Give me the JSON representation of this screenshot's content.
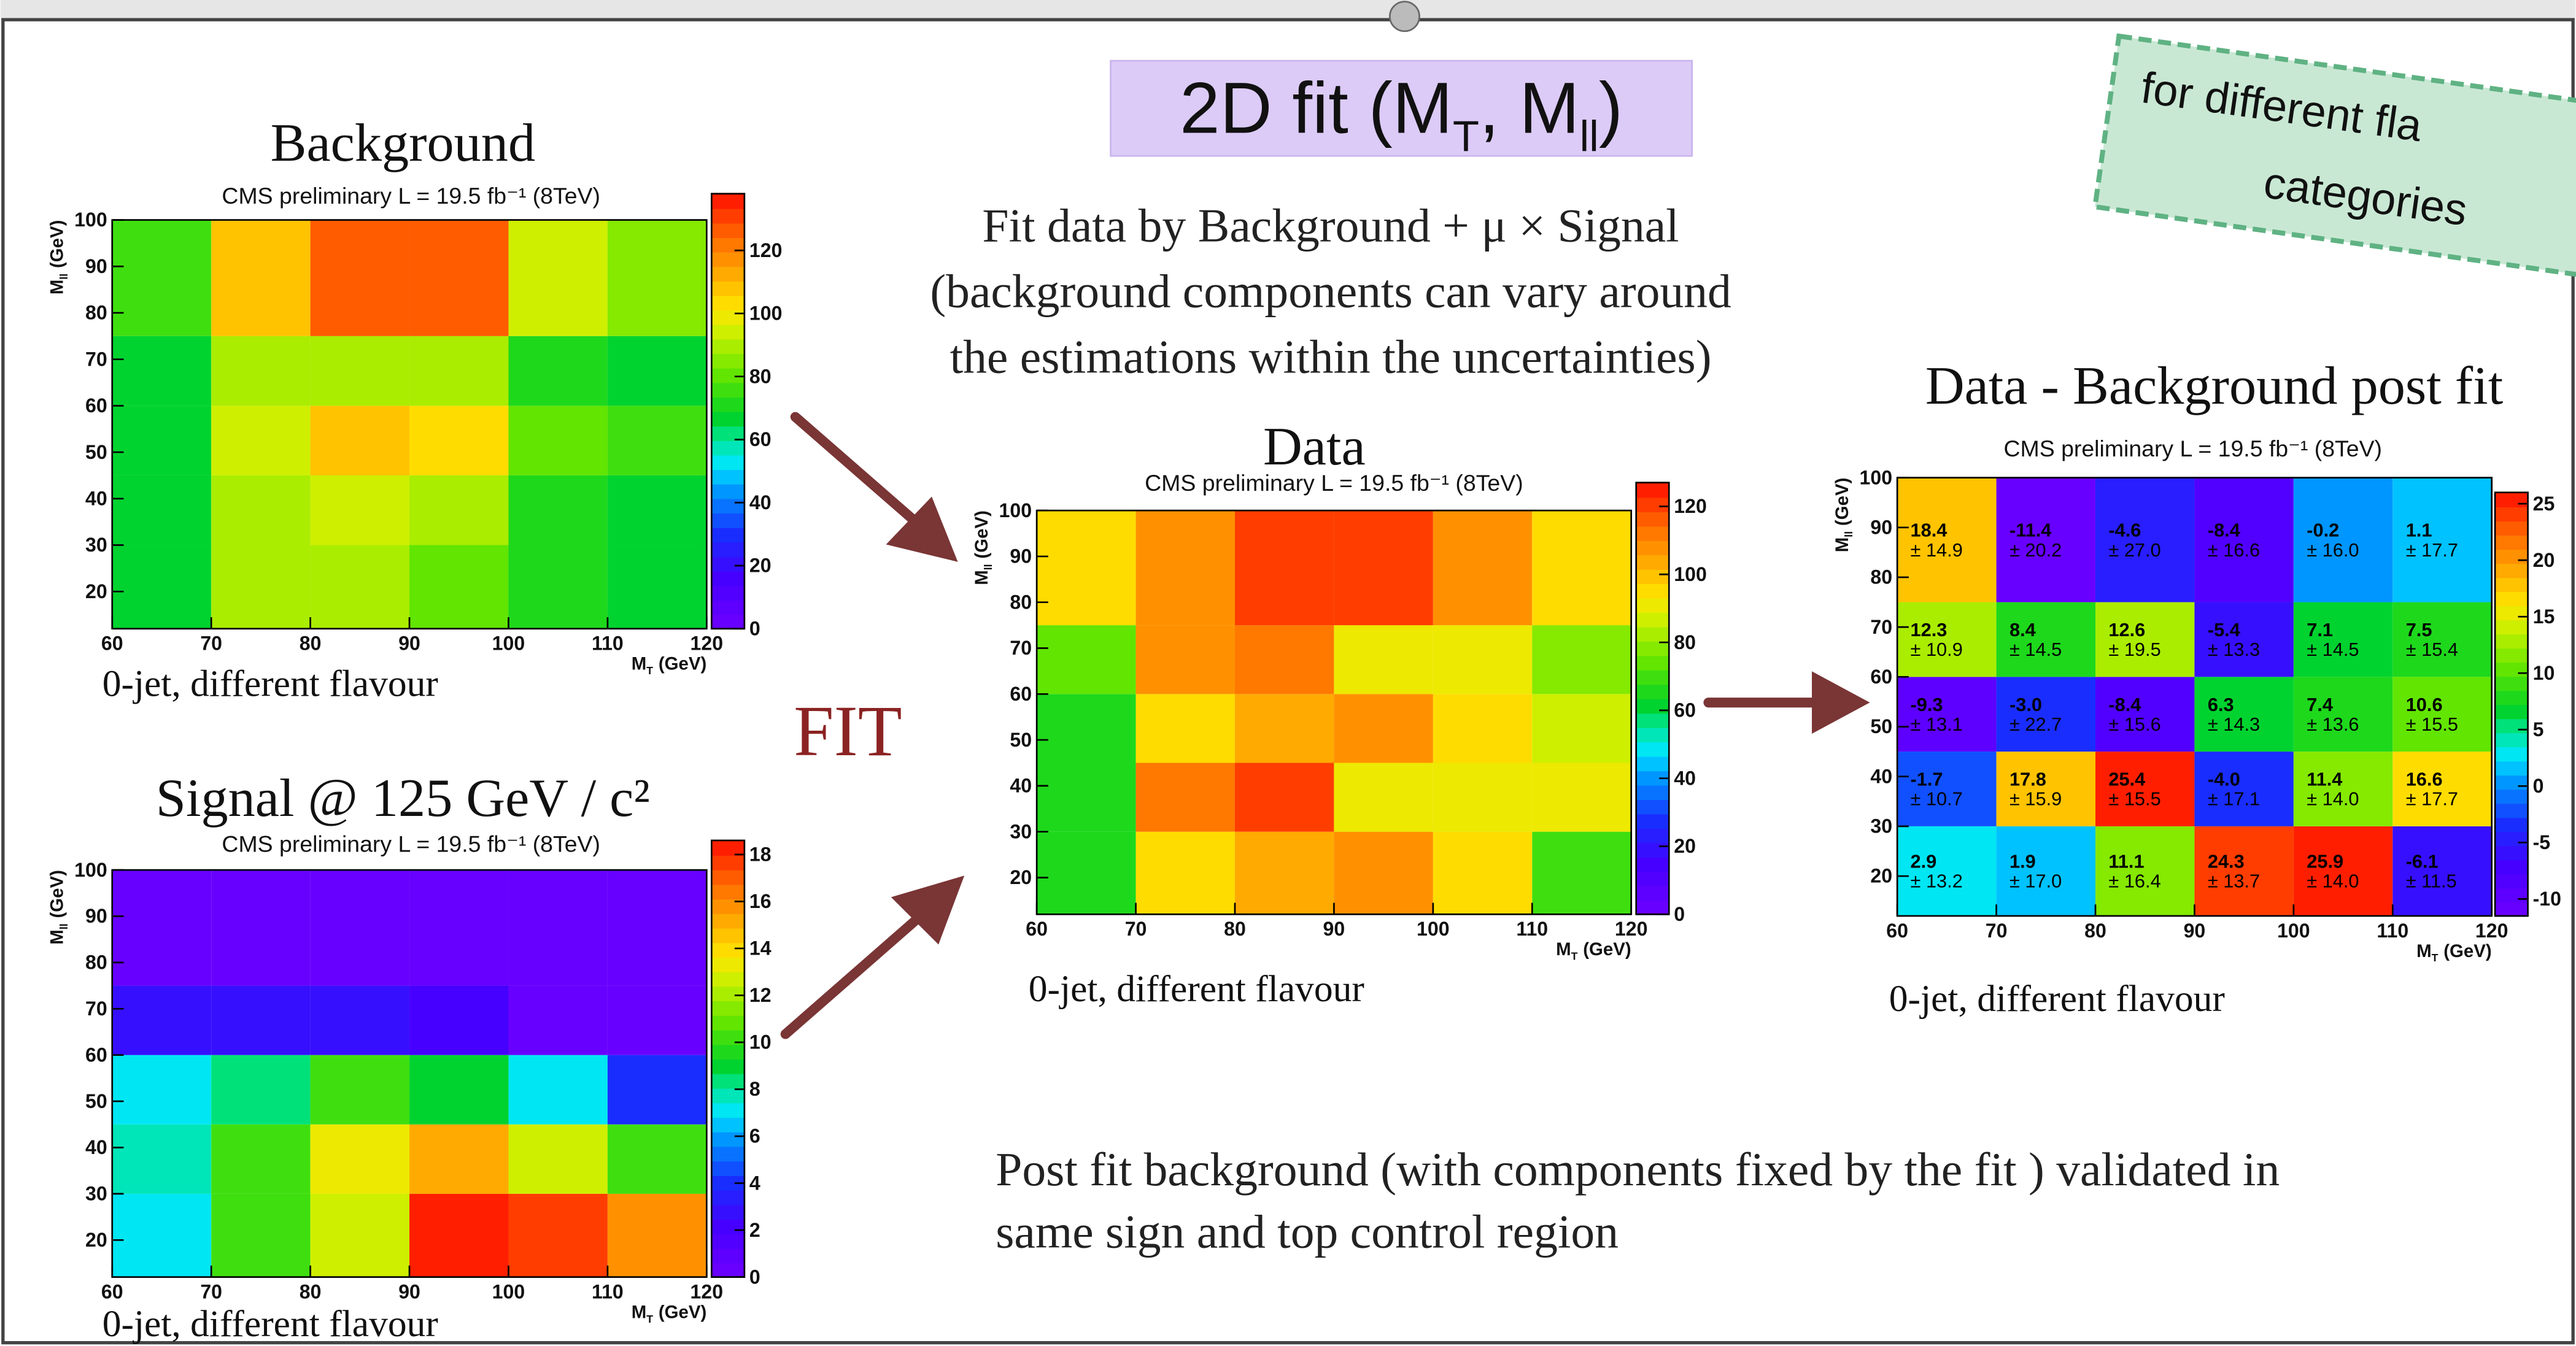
{
  "slide_title": [
    "2D fit (M",
    "T",
    ", M",
    "ll",
    ")"
  ],
  "fit_text": [
    "Fit data by  Background + μ × Signal",
    "(background components can vary around",
    "the estimations within the uncertainties)"
  ],
  "fit_label": "FIT",
  "conclusion": [
    "Post fit background (with components fixed by the fit ) validated in",
    "same sign and top control region"
  ],
  "note": [
    "for different fla",
    "categories"
  ],
  "chart_data": [
    {
      "type": "heatmap",
      "title": "Background",
      "subtitle": "CMS preliminary L = 19.5 fb⁻¹ (8TeV)",
      "caption": "0-jet, different flavour",
      "xlabel": [
        "M",
        "T",
        "(GeV)"
      ],
      "ylabel": [
        "M",
        "ll",
        "(GeV)"
      ],
      "xbins": [
        60,
        70,
        80,
        90,
        100,
        110,
        120
      ],
      "ybins": [
        12,
        30,
        45,
        60,
        75,
        100
      ],
      "xlim": [
        60,
        120
      ],
      "ylim": [
        12,
        100
      ],
      "xticks": [
        60,
        70,
        80,
        90,
        100,
        110,
        120
      ],
      "yticks": [
        20,
        30,
        40,
        50,
        60,
        70,
        80,
        90,
        100
      ],
      "zlim": [
        0,
        138
      ],
      "zticks": [
        0,
        20,
        40,
        60,
        80,
        100,
        120
      ],
      "z": [
        [
          65,
          88,
          88,
          80,
          70,
          68
        ],
        [
          65,
          88,
          95,
          90,
          70,
          68
        ],
        [
          65,
          95,
          110,
          103,
          80,
          78
        ],
        [
          65,
          90,
          90,
          90,
          70,
          65
        ],
        [
          75,
          110,
          128,
          128,
          95,
          85
        ]
      ]
    },
    {
      "type": "heatmap",
      "title": "Signal @ 125 GeV / c²",
      "subtitle": "CMS preliminary L = 19.5 fb⁻¹ (8TeV)",
      "caption": "0-jet, different flavour",
      "xlabel": [
        "M",
        "T",
        "(GeV)"
      ],
      "ylabel": [
        "M",
        "ll",
        "(GeV)"
      ],
      "xbins": [
        60,
        70,
        80,
        90,
        100,
        110,
        120
      ],
      "ybins": [
        12,
        30,
        45,
        60,
        75,
        100
      ],
      "xlim": [
        60,
        120
      ],
      "ylim": [
        12,
        100
      ],
      "xticks": [
        60,
        70,
        80,
        90,
        100,
        110,
        120
      ],
      "yticks": [
        20,
        30,
        40,
        50,
        60,
        70,
        80,
        90,
        100
      ],
      "zlim": [
        0,
        18.6
      ],
      "zticks": [
        0,
        2,
        4,
        6,
        8,
        10,
        12,
        14,
        16,
        18
      ],
      "z": [
        [
          7,
          10,
          12.5,
          18.5,
          17.5,
          16
        ],
        [
          8,
          10,
          13.5,
          15.5,
          13,
          10
        ],
        [
          7,
          8.5,
          10,
          9,
          7,
          4
        ],
        [
          3,
          3,
          3,
          2,
          0.5,
          0.5
        ],
        [
          0.5,
          0.5,
          0.5,
          0.5,
          0.5,
          0.5
        ]
      ]
    },
    {
      "type": "heatmap",
      "title": "Data",
      "subtitle": "CMS preliminary L = 19.5 fb⁻¹ (8TeV)",
      "caption": "0-jet, different flavour",
      "xlabel": [
        "M",
        "T",
        "(GeV)"
      ],
      "ylabel": [
        "M",
        "ll",
        "(GeV)"
      ],
      "xbins": [
        60,
        70,
        80,
        90,
        100,
        110,
        120
      ],
      "ybins": [
        12,
        30,
        45,
        60,
        75,
        100
      ],
      "xlim": [
        60,
        120
      ],
      "ylim": [
        12,
        100
      ],
      "xticks": [
        60,
        70,
        80,
        90,
        100,
        110,
        120
      ],
      "yticks": [
        20,
        30,
        40,
        50,
        60,
        70,
        80,
        90,
        100
      ],
      "zlim": [
        0,
        127
      ],
      "zticks": [
        0,
        20,
        40,
        60,
        80,
        100,
        120
      ],
      "z": [
        [
          65,
          95,
          105,
          110,
          95,
          70
        ],
        [
          65,
          112,
          120,
          90,
          90,
          90
        ],
        [
          65,
          95,
          105,
          110,
          95,
          88
        ],
        [
          75,
          108,
          112,
          90,
          90,
          78
        ],
        [
          95,
          110,
          122,
          120,
          108,
          95
        ]
      ]
    },
    {
      "type": "heatmap",
      "title": "Data - Background post fit",
      "subtitle": "CMS preliminary L = 19.5 fb⁻¹ (8TeV)",
      "caption": "0-jet, different flavour",
      "xlabel": [
        "M",
        "T",
        "(GeV)"
      ],
      "ylabel": [
        "M",
        "ll",
        "(GeV)"
      ],
      "xbins": [
        60,
        70,
        80,
        90,
        100,
        110,
        120
      ],
      "ybins": [
        12,
        30,
        45,
        60,
        75,
        100
      ],
      "xlim": [
        60,
        120
      ],
      "ylim": [
        12,
        100
      ],
      "xticks": [
        60,
        70,
        80,
        90,
        100,
        110,
        120
      ],
      "yticks": [
        20,
        30,
        40,
        50,
        60,
        70,
        80,
        90,
        100
      ],
      "zlim": [
        -11.5,
        26
      ],
      "zticks": [
        -10,
        -5,
        0,
        5,
        10,
        15,
        20,
        25
      ],
      "z": [
        [
          2.9,
          1.9,
          11.1,
          24.3,
          25.9,
          -6.1
        ],
        [
          -1.7,
          17.8,
          25.4,
          -4.0,
          11.4,
          16.6
        ],
        [
          -9.3,
          -3.0,
          -8.4,
          6.3,
          7.4,
          10.6
        ],
        [
          12.3,
          8.4,
          12.6,
          -5.4,
          7.1,
          7.5
        ],
        [
          18.4,
          -11.4,
          -4.6,
          -8.4,
          -0.2,
          1.1
        ]
      ],
      "value_labels": [
        [
          "2.9",
          "1.9",
          "11.1",
          "24.3",
          "25.9",
          "-6.1"
        ],
        [
          "-1.7",
          "17.8",
          "25.4",
          "-4.0",
          "11.4",
          "16.6"
        ],
        [
          "-9.3",
          "-3.0",
          "-8.4",
          "6.3",
          "7.4",
          "10.6"
        ],
        [
          "12.3",
          "8.4",
          "12.6",
          "-5.4",
          "7.1",
          "7.5"
        ],
        [
          "18.4",
          "-11.4",
          "-4.6",
          "-8.4",
          "-0.2",
          "1.1"
        ]
      ],
      "errors": [
        [
          13.2,
          17.0,
          16.4,
          13.7,
          14.0,
          11.5
        ],
        [
          10.7,
          15.9,
          15.5,
          17.1,
          14.0,
          17.7
        ],
        [
          13.1,
          22.7,
          15.6,
          14.3,
          13.6,
          15.5
        ],
        [
          10.9,
          14.5,
          19.5,
          13.3,
          14.5,
          15.4
        ],
        [
          14.9,
          20.2,
          27.0,
          16.6,
          16.0,
          17.7
        ]
      ],
      "error_labels": [
        [
          "± 13.2",
          "± 17.0",
          "± 16.4",
          "± 13.7",
          "± 14.0",
          "± 11.5"
        ],
        [
          "± 10.7",
          "± 15.9",
          "± 15.5",
          "± 17.1",
          "± 14.0",
          "± 17.7"
        ],
        [
          "± 13.1",
          "± 22.7",
          "± 15.6",
          "± 14.3",
          "± 13.6",
          "± 15.5"
        ],
        [
          "± 10.9",
          "± 14.5",
          "± 19.5",
          "± 13.3",
          "± 14.5",
          "± 15.4"
        ],
        [
          "± 14.9",
          "± 20.2",
          "± 27.0",
          "± 16.6",
          "± 16.0",
          "± 17.7"
        ]
      ]
    }
  ]
}
